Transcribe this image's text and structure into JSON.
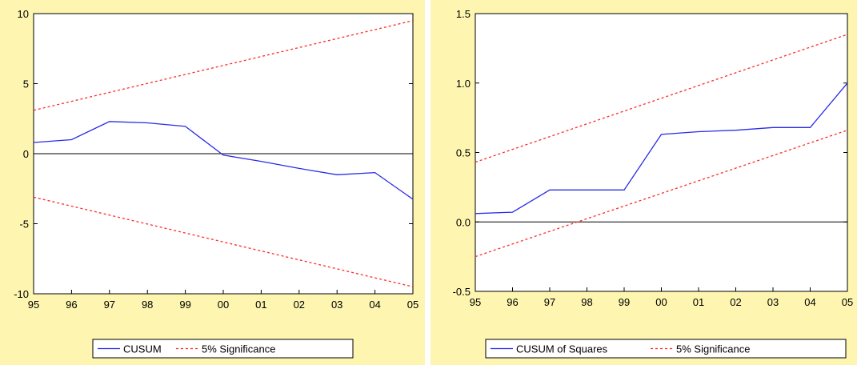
{
  "chart_data": [
    {
      "type": "line",
      "title": "",
      "xlabel": "",
      "ylabel": "",
      "categories": [
        "95",
        "96",
        "97",
        "98",
        "99",
        "00",
        "01",
        "02",
        "03",
        "04",
        "05"
      ],
      "x": [
        1995,
        2005
      ],
      "ylim": [
        -10,
        10
      ],
      "yticks": [
        10,
        5,
        0,
        -5,
        -10
      ],
      "grid": false,
      "legend_position": "bottom",
      "zero_line": true,
      "series": [
        {
          "name": "CUSUM",
          "color": "#2b2be8",
          "style": "solid",
          "points": [
            [
              1995,
              0.8
            ],
            [
              1996,
              1.0
            ],
            [
              1997,
              2.3
            ],
            [
              1998,
              2.2
            ],
            [
              1999,
              1.95
            ],
            [
              2000,
              -0.1
            ],
            [
              2001,
              -0.55
            ],
            [
              2002,
              -1.05
            ],
            [
              2003,
              -1.5
            ],
            [
              2004,
              -1.35
            ],
            [
              2005,
              -3.25
            ]
          ]
        },
        {
          "name": "5% Significance",
          "color": "#ff2a2a",
          "style": "dashed",
          "points": [
            [
              1995,
              3.1
            ],
            [
              2005,
              9.5
            ]
          ]
        },
        {
          "name": "",
          "color": "#ff2a2a",
          "style": "dashed",
          "points": [
            [
              1995,
              -3.1
            ],
            [
              2005,
              -9.5
            ]
          ]
        }
      ]
    },
    {
      "type": "line",
      "title": "",
      "xlabel": "",
      "ylabel": "",
      "categories": [
        "95",
        "96",
        "97",
        "98",
        "99",
        "00",
        "01",
        "02",
        "03",
        "04",
        "05"
      ],
      "x": [
        1995,
        2005
      ],
      "ylim": [
        -0.5,
        1.5
      ],
      "yticks": [
        "1.5",
        "1.0",
        "0.5",
        "0.0",
        "-0.5"
      ],
      "grid": false,
      "legend_position": "bottom",
      "zero_line": true,
      "series": [
        {
          "name": "CUSUM of Squares",
          "color": "#2b2be8",
          "style": "solid",
          "points": [
            [
              1995,
              0.06
            ],
            [
              1996,
              0.07
            ],
            [
              1997,
              0.23
            ],
            [
              1998,
              0.23
            ],
            [
              1999,
              0.23
            ],
            [
              2000,
              0.63
            ],
            [
              2001,
              0.65
            ],
            [
              2002,
              0.66
            ],
            [
              2003,
              0.68
            ],
            [
              2004,
              0.68
            ],
            [
              2005,
              1.0
            ]
          ]
        },
        {
          "name": "5% Significance",
          "color": "#ff2a2a",
          "style": "dashed",
          "points": [
            [
              1995,
              0.43
            ],
            [
              2005,
              1.35
            ]
          ]
        },
        {
          "name": "",
          "color": "#ff2a2a",
          "style": "dashed",
          "points": [
            [
              1995,
              -0.25
            ],
            [
              2005,
              0.66
            ]
          ]
        }
      ]
    }
  ]
}
